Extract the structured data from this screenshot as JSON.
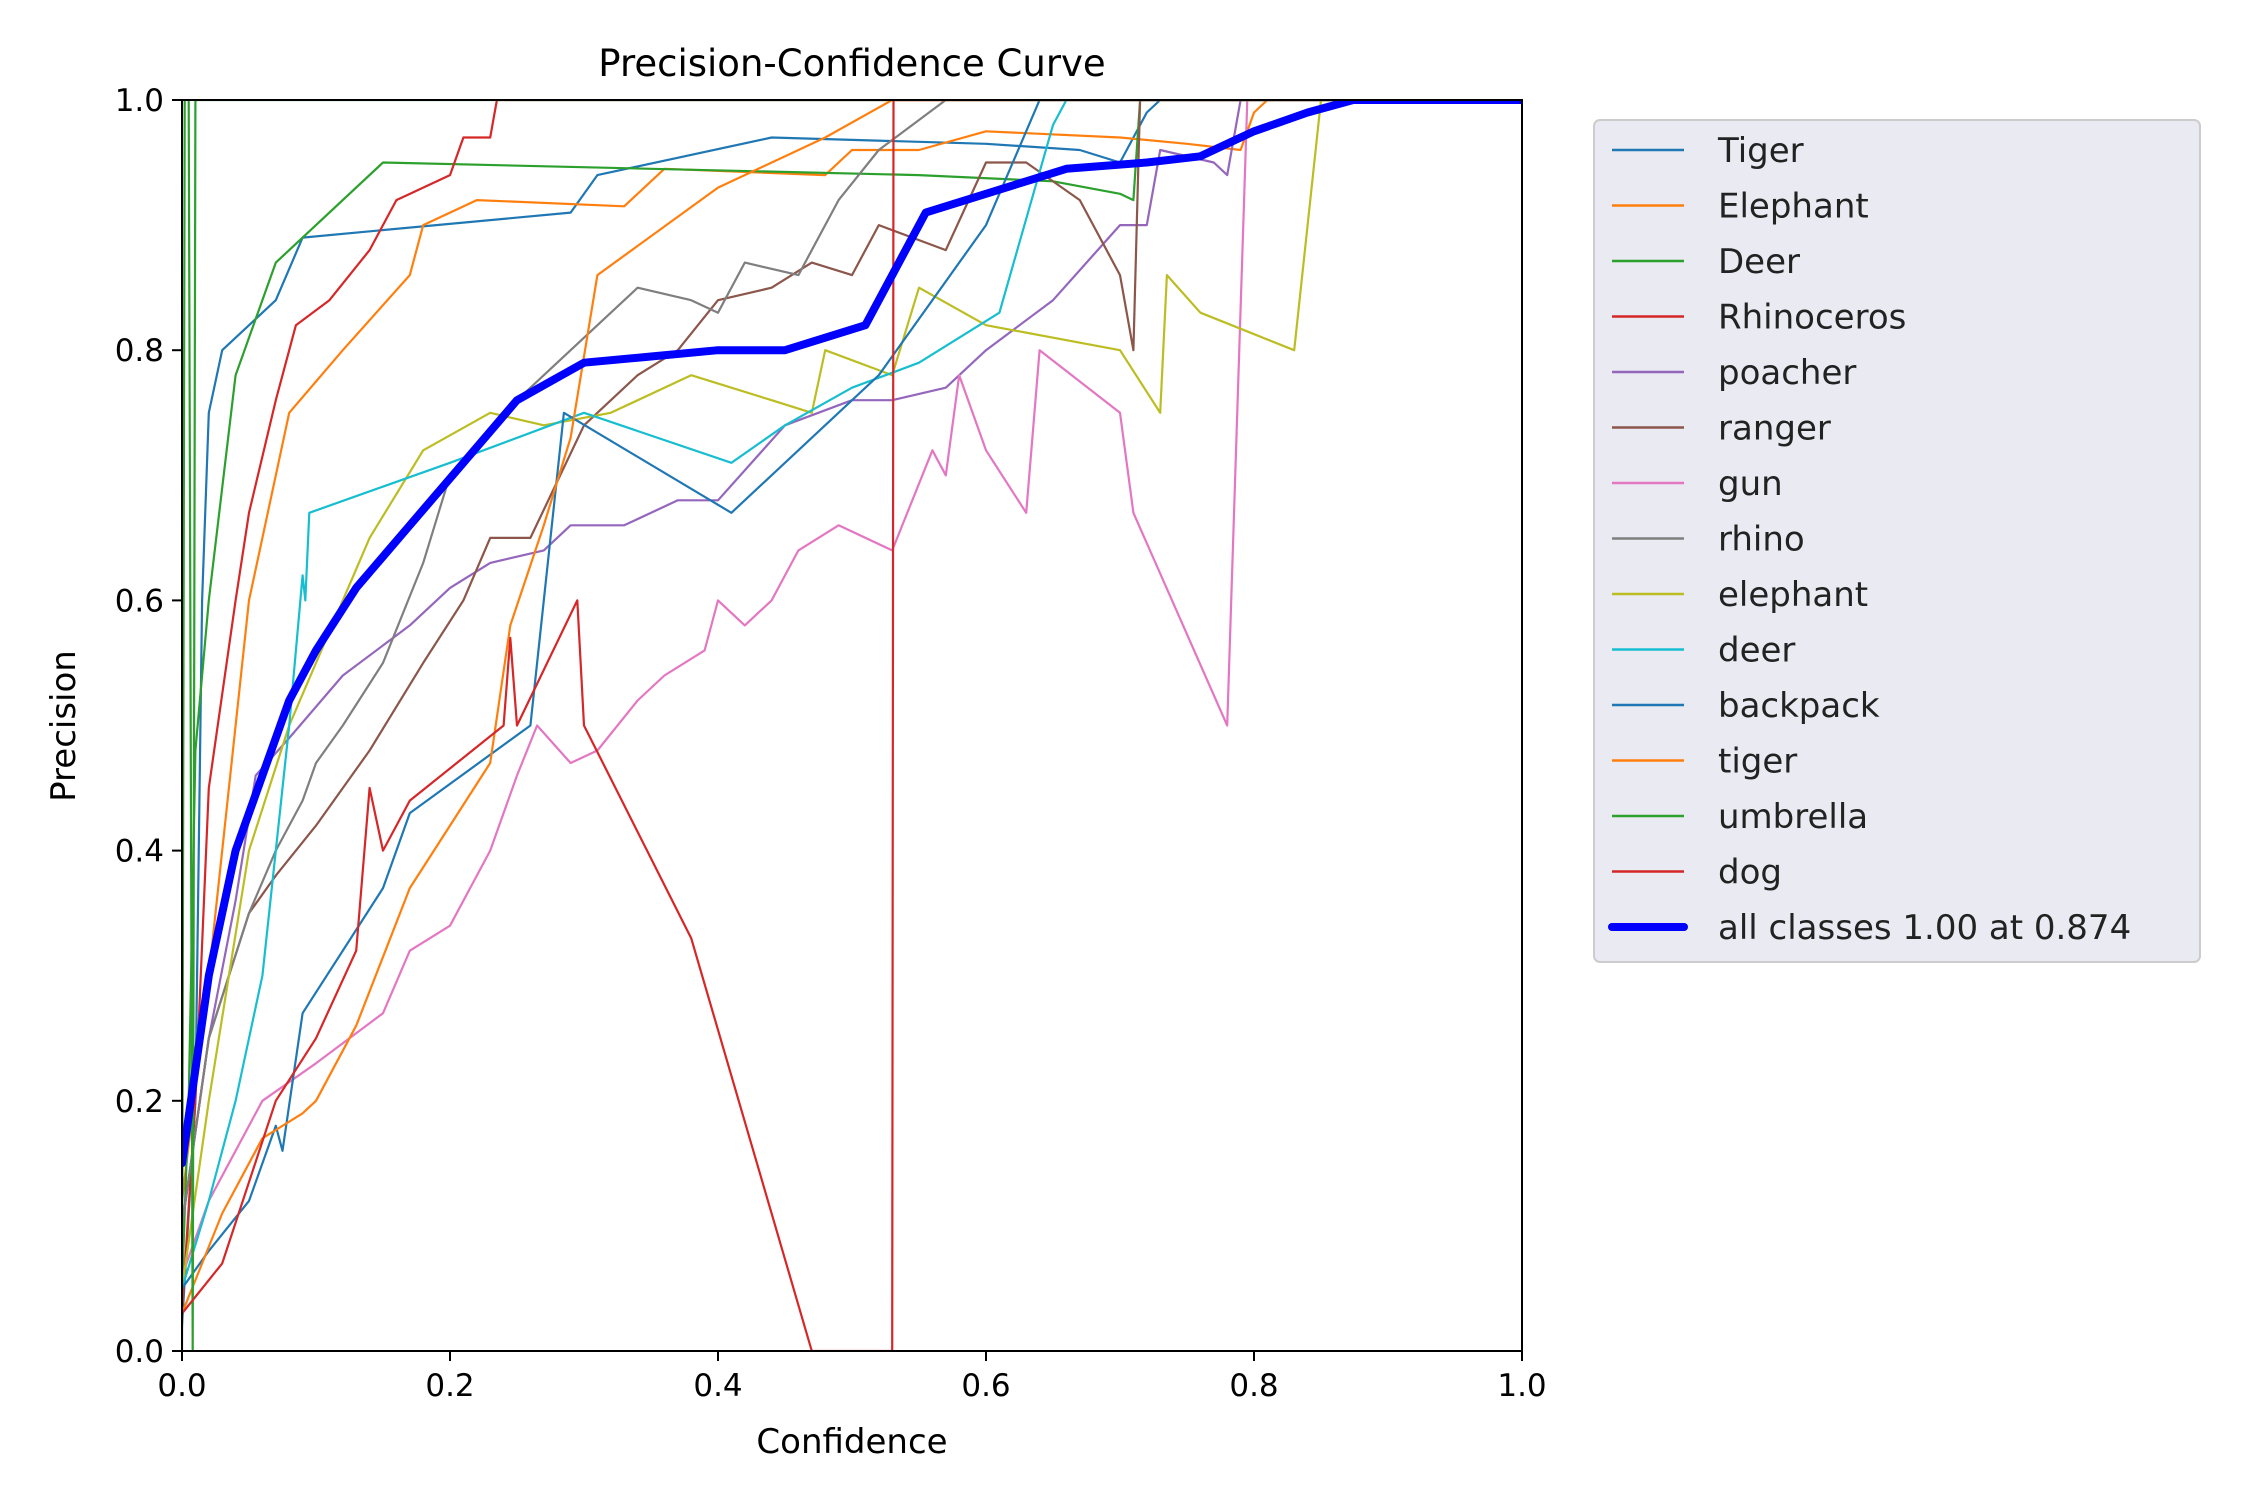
{
  "chart_data": {
    "type": "line",
    "title": "Precision-Confidence Curve",
    "xlabel": "Confidence",
    "ylabel": "Precision",
    "xlim": [
      0,
      1
    ],
    "ylim": [
      0,
      1
    ],
    "xticks": [
      "0.0",
      "0.2",
      "0.4",
      "0.6",
      "0.8",
      "1.0"
    ],
    "yticks": [
      "0.0",
      "0.2",
      "0.4",
      "0.6",
      "0.8",
      "1.0"
    ],
    "grid": false,
    "legend_position": "outside-right",
    "series": [
      {
        "name": "Tiger",
        "color": "#1f77b4",
        "points": [
          [
            0.0,
            0.02
          ],
          [
            0.01,
            0.2
          ],
          [
            0.015,
            0.6
          ],
          [
            0.02,
            0.75
          ],
          [
            0.03,
            0.8
          ],
          [
            0.07,
            0.84
          ],
          [
            0.09,
            0.89
          ],
          [
            0.29,
            0.91
          ],
          [
            0.31,
            0.94
          ],
          [
            0.44,
            0.97
          ],
          [
            0.6,
            0.965
          ],
          [
            0.67,
            0.96
          ],
          [
            0.7,
            0.95
          ],
          [
            0.72,
            0.99
          ],
          [
            0.73,
            1.0
          ],
          [
            1.0,
            1.0
          ]
        ]
      },
      {
        "name": "Elephant",
        "color": "#ff7f0e",
        "points": [
          [
            0.0,
            0.12
          ],
          [
            0.02,
            0.3
          ],
          [
            0.05,
            0.6
          ],
          [
            0.08,
            0.75
          ],
          [
            0.12,
            0.8
          ],
          [
            0.17,
            0.86
          ],
          [
            0.18,
            0.9
          ],
          [
            0.22,
            0.92
          ],
          [
            0.33,
            0.915
          ],
          [
            0.36,
            0.945
          ],
          [
            0.48,
            0.94
          ],
          [
            0.5,
            0.96
          ],
          [
            0.55,
            0.96
          ],
          [
            0.6,
            0.975
          ],
          [
            0.7,
            0.97
          ],
          [
            0.75,
            0.965
          ],
          [
            0.79,
            0.96
          ],
          [
            0.8,
            0.99
          ],
          [
            0.81,
            1.0
          ],
          [
            1.0,
            1.0
          ]
        ]
      },
      {
        "name": "Deer",
        "color": "#2ca02c",
        "points": [
          [
            0.0,
            0.05
          ],
          [
            0.005,
            0.2
          ],
          [
            0.01,
            0.48
          ],
          [
            0.02,
            0.6
          ],
          [
            0.04,
            0.78
          ],
          [
            0.07,
            0.87
          ],
          [
            0.1,
            0.9
          ],
          [
            0.15,
            0.95
          ],
          [
            0.35,
            0.945
          ],
          [
            0.55,
            0.94
          ],
          [
            0.65,
            0.935
          ],
          [
            0.7,
            0.925
          ],
          [
            0.71,
            0.92
          ],
          [
            0.715,
            1.0
          ],
          [
            1.0,
            1.0
          ]
        ]
      },
      {
        "name": "Rhinoceros",
        "color": "#d62728",
        "points": [
          [
            0.0,
            0.03
          ],
          [
            0.01,
            0.2
          ],
          [
            0.02,
            0.45
          ],
          [
            0.04,
            0.6
          ],
          [
            0.05,
            0.67
          ],
          [
            0.07,
            0.76
          ],
          [
            0.085,
            0.82
          ],
          [
            0.11,
            0.84
          ],
          [
            0.14,
            0.88
          ],
          [
            0.16,
            0.92
          ],
          [
            0.2,
            0.94
          ],
          [
            0.21,
            0.97
          ],
          [
            0.23,
            0.97
          ],
          [
            0.235,
            1.0
          ],
          [
            1.0,
            1.0
          ]
        ]
      },
      {
        "name": "poacher",
        "color": "#9467bd",
        "points": [
          [
            0.0,
            0.1
          ],
          [
            0.02,
            0.25
          ],
          [
            0.04,
            0.36
          ],
          [
            0.055,
            0.46
          ],
          [
            0.08,
            0.49
          ],
          [
            0.12,
            0.54
          ],
          [
            0.17,
            0.58
          ],
          [
            0.2,
            0.61
          ],
          [
            0.23,
            0.63
          ],
          [
            0.27,
            0.64
          ],
          [
            0.29,
            0.66
          ],
          [
            0.33,
            0.66
          ],
          [
            0.37,
            0.68
          ],
          [
            0.4,
            0.68
          ],
          [
            0.45,
            0.74
          ],
          [
            0.5,
            0.76
          ],
          [
            0.53,
            0.76
          ],
          [
            0.57,
            0.77
          ],
          [
            0.6,
            0.8
          ],
          [
            0.65,
            0.84
          ],
          [
            0.7,
            0.9
          ],
          [
            0.72,
            0.9
          ],
          [
            0.73,
            0.96
          ],
          [
            0.77,
            0.95
          ],
          [
            0.78,
            0.94
          ],
          [
            0.79,
            1.0
          ],
          [
            1.0,
            1.0
          ]
        ]
      },
      {
        "name": "ranger",
        "color": "#8c564b",
        "points": [
          [
            0.0,
            0.1
          ],
          [
            0.02,
            0.25
          ],
          [
            0.05,
            0.35
          ],
          [
            0.07,
            0.38
          ],
          [
            0.1,
            0.42
          ],
          [
            0.14,
            0.48
          ],
          [
            0.18,
            0.55
          ],
          [
            0.21,
            0.6
          ],
          [
            0.23,
            0.65
          ],
          [
            0.26,
            0.65
          ],
          [
            0.3,
            0.74
          ],
          [
            0.34,
            0.78
          ],
          [
            0.37,
            0.8
          ],
          [
            0.4,
            0.84
          ],
          [
            0.44,
            0.85
          ],
          [
            0.47,
            0.87
          ],
          [
            0.5,
            0.86
          ],
          [
            0.52,
            0.9
          ],
          [
            0.57,
            0.88
          ],
          [
            0.6,
            0.95
          ],
          [
            0.63,
            0.95
          ],
          [
            0.67,
            0.92
          ],
          [
            0.7,
            0.86
          ],
          [
            0.71,
            0.8
          ],
          [
            0.715,
            1.0
          ],
          [
            1.0,
            1.0
          ]
        ]
      },
      {
        "name": "gun",
        "color": "#e377c2",
        "points": [
          [
            0.0,
            0.06
          ],
          [
            0.02,
            0.12
          ],
          [
            0.04,
            0.16
          ],
          [
            0.06,
            0.2
          ],
          [
            0.1,
            0.23
          ],
          [
            0.15,
            0.27
          ],
          [
            0.17,
            0.32
          ],
          [
            0.2,
            0.34
          ],
          [
            0.23,
            0.4
          ],
          [
            0.25,
            0.46
          ],
          [
            0.265,
            0.5
          ],
          [
            0.29,
            0.47
          ],
          [
            0.31,
            0.48
          ],
          [
            0.34,
            0.52
          ],
          [
            0.36,
            0.54
          ],
          [
            0.39,
            0.56
          ],
          [
            0.4,
            0.6
          ],
          [
            0.42,
            0.58
          ],
          [
            0.44,
            0.6
          ],
          [
            0.46,
            0.64
          ],
          [
            0.49,
            0.66
          ],
          [
            0.53,
            0.64
          ],
          [
            0.56,
            0.72
          ],
          [
            0.57,
            0.7
          ],
          [
            0.58,
            0.78
          ],
          [
            0.6,
            0.72
          ],
          [
            0.63,
            0.67
          ],
          [
            0.64,
            0.8
          ],
          [
            0.7,
            0.75
          ],
          [
            0.71,
            0.67
          ],
          [
            0.78,
            0.5
          ],
          [
            0.795,
            1.0
          ],
          [
            1.0,
            1.0
          ]
        ]
      },
      {
        "name": "rhino",
        "color": "#7f7f7f",
        "points": [
          [
            0.0,
            0.1
          ],
          [
            0.02,
            0.25
          ],
          [
            0.05,
            0.35
          ],
          [
            0.07,
            0.4
          ],
          [
            0.09,
            0.44
          ],
          [
            0.1,
            0.47
          ],
          [
            0.12,
            0.5
          ],
          [
            0.15,
            0.55
          ],
          [
            0.18,
            0.63
          ],
          [
            0.2,
            0.7
          ],
          [
            0.25,
            0.76
          ],
          [
            0.29,
            0.8
          ],
          [
            0.34,
            0.85
          ],
          [
            0.38,
            0.84
          ],
          [
            0.4,
            0.83
          ],
          [
            0.42,
            0.87
          ],
          [
            0.46,
            0.86
          ],
          [
            0.49,
            0.92
          ],
          [
            0.52,
            0.96
          ],
          [
            0.57,
            1.0
          ],
          [
            1.0,
            1.0
          ]
        ]
      },
      {
        "name": "elephant",
        "color": "#bcbd22",
        "points": [
          [
            0.0,
            0.05
          ],
          [
            0.02,
            0.2
          ],
          [
            0.05,
            0.4
          ],
          [
            0.08,
            0.5
          ],
          [
            0.1,
            0.55
          ],
          [
            0.14,
            0.65
          ],
          [
            0.18,
            0.72
          ],
          [
            0.23,
            0.75
          ],
          [
            0.27,
            0.74
          ],
          [
            0.32,
            0.75
          ],
          [
            0.38,
            0.78
          ],
          [
            0.44,
            0.76
          ],
          [
            0.47,
            0.75
          ],
          [
            0.48,
            0.8
          ],
          [
            0.53,
            0.78
          ],
          [
            0.55,
            0.85
          ],
          [
            0.6,
            0.82
          ],
          [
            0.7,
            0.8
          ],
          [
            0.73,
            0.75
          ],
          [
            0.735,
            0.86
          ],
          [
            0.76,
            0.83
          ],
          [
            0.83,
            0.8
          ],
          [
            0.85,
            1.0
          ],
          [
            1.0,
            1.0
          ]
        ]
      },
      {
        "name": "deer",
        "color": "#17becf",
        "points": [
          [
            0.0,
            0.05
          ],
          [
            0.02,
            0.12
          ],
          [
            0.04,
            0.2
          ],
          [
            0.06,
            0.3
          ],
          [
            0.08,
            0.5
          ],
          [
            0.09,
            0.62
          ],
          [
            0.092,
            0.6
          ],
          [
            0.095,
            0.67
          ],
          [
            0.2,
            0.71
          ],
          [
            0.3,
            0.75
          ],
          [
            0.41,
            0.71
          ],
          [
            0.45,
            0.74
          ],
          [
            0.5,
            0.77
          ],
          [
            0.55,
            0.79
          ],
          [
            0.61,
            0.83
          ],
          [
            0.65,
            0.98
          ],
          [
            0.66,
            1.0
          ],
          [
            1.0,
            1.0
          ]
        ]
      },
      {
        "name": "backpack",
        "color": "#1f77b4",
        "points": [
          [
            0.0,
            0.05
          ],
          [
            0.02,
            0.08
          ],
          [
            0.05,
            0.12
          ],
          [
            0.07,
            0.18
          ],
          [
            0.075,
            0.16
          ],
          [
            0.09,
            0.27
          ],
          [
            0.15,
            0.37
          ],
          [
            0.17,
            0.43
          ],
          [
            0.26,
            0.5
          ],
          [
            0.285,
            0.75
          ],
          [
            0.41,
            0.67
          ],
          [
            0.52,
            0.78
          ],
          [
            0.6,
            0.9
          ],
          [
            0.64,
            1.0
          ],
          [
            1.0,
            1.0
          ]
        ]
      },
      {
        "name": "tiger",
        "color": "#ff7f0e",
        "points": [
          [
            0.0,
            0.03
          ],
          [
            0.03,
            0.11
          ],
          [
            0.06,
            0.17
          ],
          [
            0.09,
            0.19
          ],
          [
            0.1,
            0.2
          ],
          [
            0.13,
            0.26
          ],
          [
            0.17,
            0.37
          ],
          [
            0.2,
            0.42
          ],
          [
            0.23,
            0.47
          ],
          [
            0.245,
            0.58
          ],
          [
            0.27,
            0.66
          ],
          [
            0.29,
            0.73
          ],
          [
            0.31,
            0.86
          ],
          [
            0.4,
            0.93
          ],
          [
            0.48,
            0.97
          ],
          [
            0.53,
            1.0
          ],
          [
            1.0,
            1.0
          ]
        ]
      },
      {
        "name": "umbrella",
        "color": "#2ca02c",
        "points": [
          [
            0.0,
            0.0
          ],
          [
            0.002,
            1.0
          ],
          [
            0.005,
            1.0
          ],
          [
            0.008,
            0.0
          ],
          [
            0.01,
            1.0
          ],
          [
            1.0,
            1.0
          ]
        ]
      },
      {
        "name": "dog",
        "color": "#d62728",
        "points": [
          [
            0.0,
            0.03
          ],
          [
            0.03,
            0.07
          ],
          [
            0.07,
            0.2
          ],
          [
            0.1,
            0.25
          ],
          [
            0.13,
            0.32
          ],
          [
            0.14,
            0.45
          ],
          [
            0.15,
            0.4
          ],
          [
            0.17,
            0.44
          ],
          [
            0.24,
            0.5
          ],
          [
            0.245,
            0.57
          ],
          [
            0.25,
            0.5
          ],
          [
            0.295,
            0.6
          ],
          [
            0.3,
            0.5
          ],
          [
            0.38,
            0.33
          ],
          [
            0.47,
            0.0
          ],
          [
            0.53,
            0.0
          ],
          [
            0.531,
            1.0
          ],
          [
            1.0,
            1.0
          ]
        ]
      },
      {
        "name": "all classes 1.00 at 0.874",
        "color": "#0000ff",
        "bold": true,
        "points": [
          [
            0.0,
            0.15
          ],
          [
            0.02,
            0.3
          ],
          [
            0.04,
            0.4
          ],
          [
            0.06,
            0.46
          ],
          [
            0.08,
            0.52
          ],
          [
            0.1,
            0.56
          ],
          [
            0.13,
            0.61
          ],
          [
            0.17,
            0.66
          ],
          [
            0.21,
            0.71
          ],
          [
            0.25,
            0.76
          ],
          [
            0.3,
            0.79
          ],
          [
            0.35,
            0.795
          ],
          [
            0.4,
            0.8
          ],
          [
            0.45,
            0.8
          ],
          [
            0.51,
            0.82
          ],
          [
            0.555,
            0.91
          ],
          [
            0.6,
            0.925
          ],
          [
            0.63,
            0.935
          ],
          [
            0.66,
            0.945
          ],
          [
            0.72,
            0.95
          ],
          [
            0.76,
            0.955
          ],
          [
            0.8,
            0.975
          ],
          [
            0.84,
            0.99
          ],
          [
            0.874,
            1.0
          ],
          [
            1.0,
            1.0
          ]
        ]
      }
    ]
  }
}
